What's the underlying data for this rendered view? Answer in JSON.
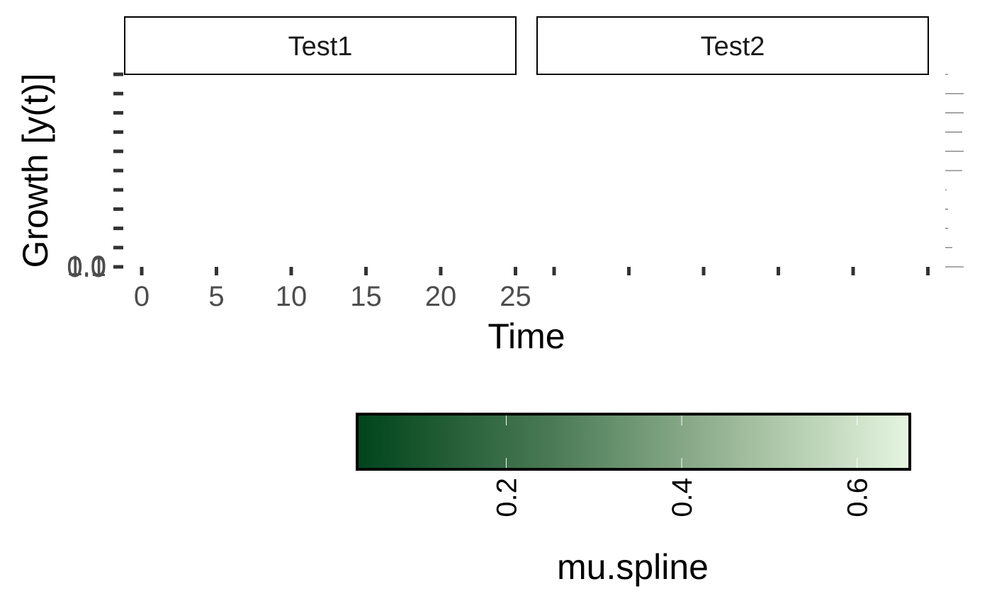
{
  "chart_data": {
    "type": "line",
    "facets": [
      "Test1",
      "Test2"
    ],
    "xlabel": "Time",
    "ylabel": "Growth [y(t)]",
    "x_ticks": [
      "0",
      "5",
      "10",
      "15",
      "20",
      "25"
    ],
    "y_ticks": [
      "0.0",
      "0.1",
      "1.0"
    ],
    "series": [],
    "legend": {
      "title": "mu.spline",
      "type": "colorbar",
      "position": "bottom",
      "low_color": "#00441b",
      "high_color": "#e5f5e0",
      "ticks": [
        "0.2",
        "0.4",
        "0.6"
      ],
      "range": [
        0.03,
        0.66
      ]
    }
  }
}
